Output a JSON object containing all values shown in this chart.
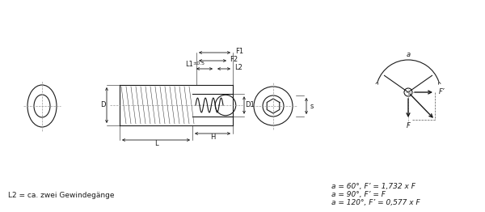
{
  "bg_color": "#ffffff",
  "line_color": "#1a1a1a",
  "text_color": "#1a1a1a",
  "note_left": "L2 = ca. zwei Gewindegänge",
  "formulas": [
    "a = 60°, F’ = 1,732 x F",
    "a = 90°, F’ = F",
    "a = 120°, F’ = 0,577 x F"
  ],
  "font_size_label": 6.5,
  "font_size_note": 6.5
}
